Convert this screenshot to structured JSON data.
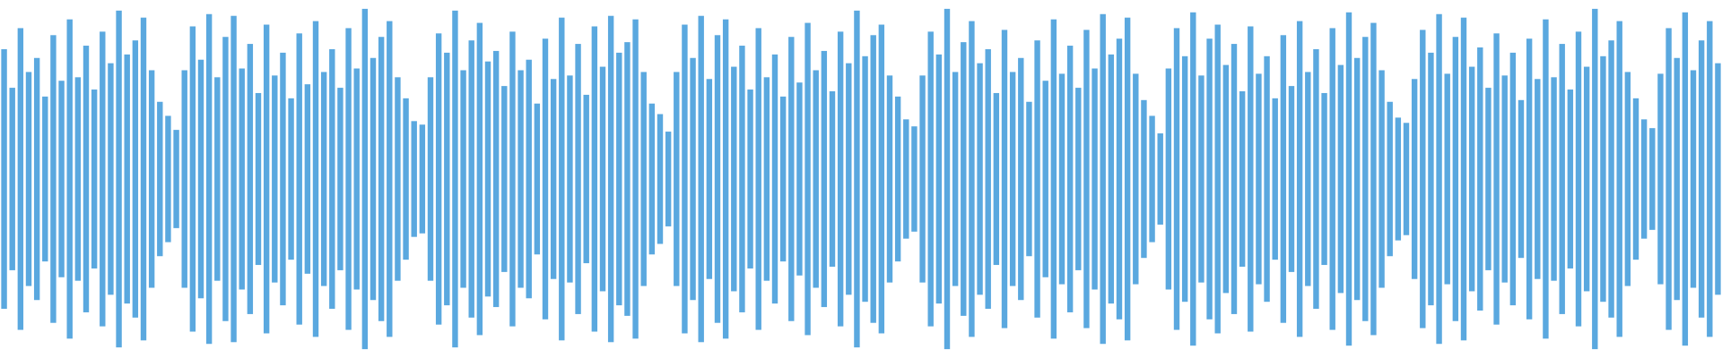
{
  "chart_data": {
    "type": "waveform",
    "color": "#5aa8df",
    "ylim": [
      -1,
      1
    ],
    "values": [
      0.74,
      0.52,
      0.86,
      0.61,
      0.69,
      0.47,
      0.82,
      0.56,
      0.91,
      0.58,
      0.76,
      0.51,
      0.84,
      0.66,
      0.96,
      0.71,
      0.79,
      0.92,
      0.62,
      0.44,
      0.36,
      0.28,
      0.62,
      0.87,
      0.68,
      0.94,
      0.58,
      0.81,
      0.93,
      0.63,
      0.77,
      0.49,
      0.88,
      0.59,
      0.72,
      0.46,
      0.83,
      0.54,
      0.9,
      0.61,
      0.74,
      0.52,
      0.86,
      0.63,
      0.97,
      0.69,
      0.81,
      0.9,
      0.58,
      0.46,
      0.33,
      0.31,
      0.58,
      0.83,
      0.72,
      0.96,
      0.62,
      0.79,
      0.89,
      0.67,
      0.73,
      0.53,
      0.84,
      0.62,
      0.68,
      0.43,
      0.8,
      0.57,
      0.92,
      0.59,
      0.77,
      0.48,
      0.87,
      0.64,
      0.93,
      0.72,
      0.78,
      0.91,
      0.61,
      0.43,
      0.37,
      0.27,
      0.61,
      0.88,
      0.69,
      0.93,
      0.57,
      0.82,
      0.91,
      0.64,
      0.76,
      0.51,
      0.86,
      0.58,
      0.71,
      0.47,
      0.81,
      0.55,
      0.89,
      0.62,
      0.73,
      0.5,
      0.84,
      0.66,
      0.96,
      0.7,
      0.82,
      0.88,
      0.59,
      0.47,
      0.34,
      0.3,
      0.59,
      0.84,
      0.71,
      0.97,
      0.61,
      0.78,
      0.9,
      0.66,
      0.74,
      0.49,
      0.85,
      0.61,
      0.69,
      0.44,
      0.79,
      0.56,
      0.91,
      0.6,
      0.76,
      0.52,
      0.85,
      0.63,
      0.94,
      0.71,
      0.8,
      0.92,
      0.6,
      0.45,
      0.36,
      0.26,
      0.63,
      0.86,
      0.7,
      0.95,
      0.59,
      0.8,
      0.88,
      0.65,
      0.77,
      0.5,
      0.87,
      0.6,
      0.7,
      0.46,
      0.82,
      0.53,
      0.9,
      0.61,
      0.74,
      0.49,
      0.86,
      0.65,
      0.95,
      0.69,
      0.81,
      0.89,
      0.62,
      0.44,
      0.35,
      0.32,
      0.57,
      0.85,
      0.72,
      0.94,
      0.6,
      0.81,
      0.92,
      0.64,
      0.75,
      0.52,
      0.83,
      0.59,
      0.72,
      0.45,
      0.8,
      0.57,
      0.91,
      0.58,
      0.77,
      0.51,
      0.84,
      0.64,
      0.97,
      0.7,
      0.79,
      0.9,
      0.61,
      0.46,
      0.34,
      0.29,
      0.6,
      0.86,
      0.69,
      0.95,
      0.62,
      0.79,
      0.9,
      0.66
    ]
  }
}
